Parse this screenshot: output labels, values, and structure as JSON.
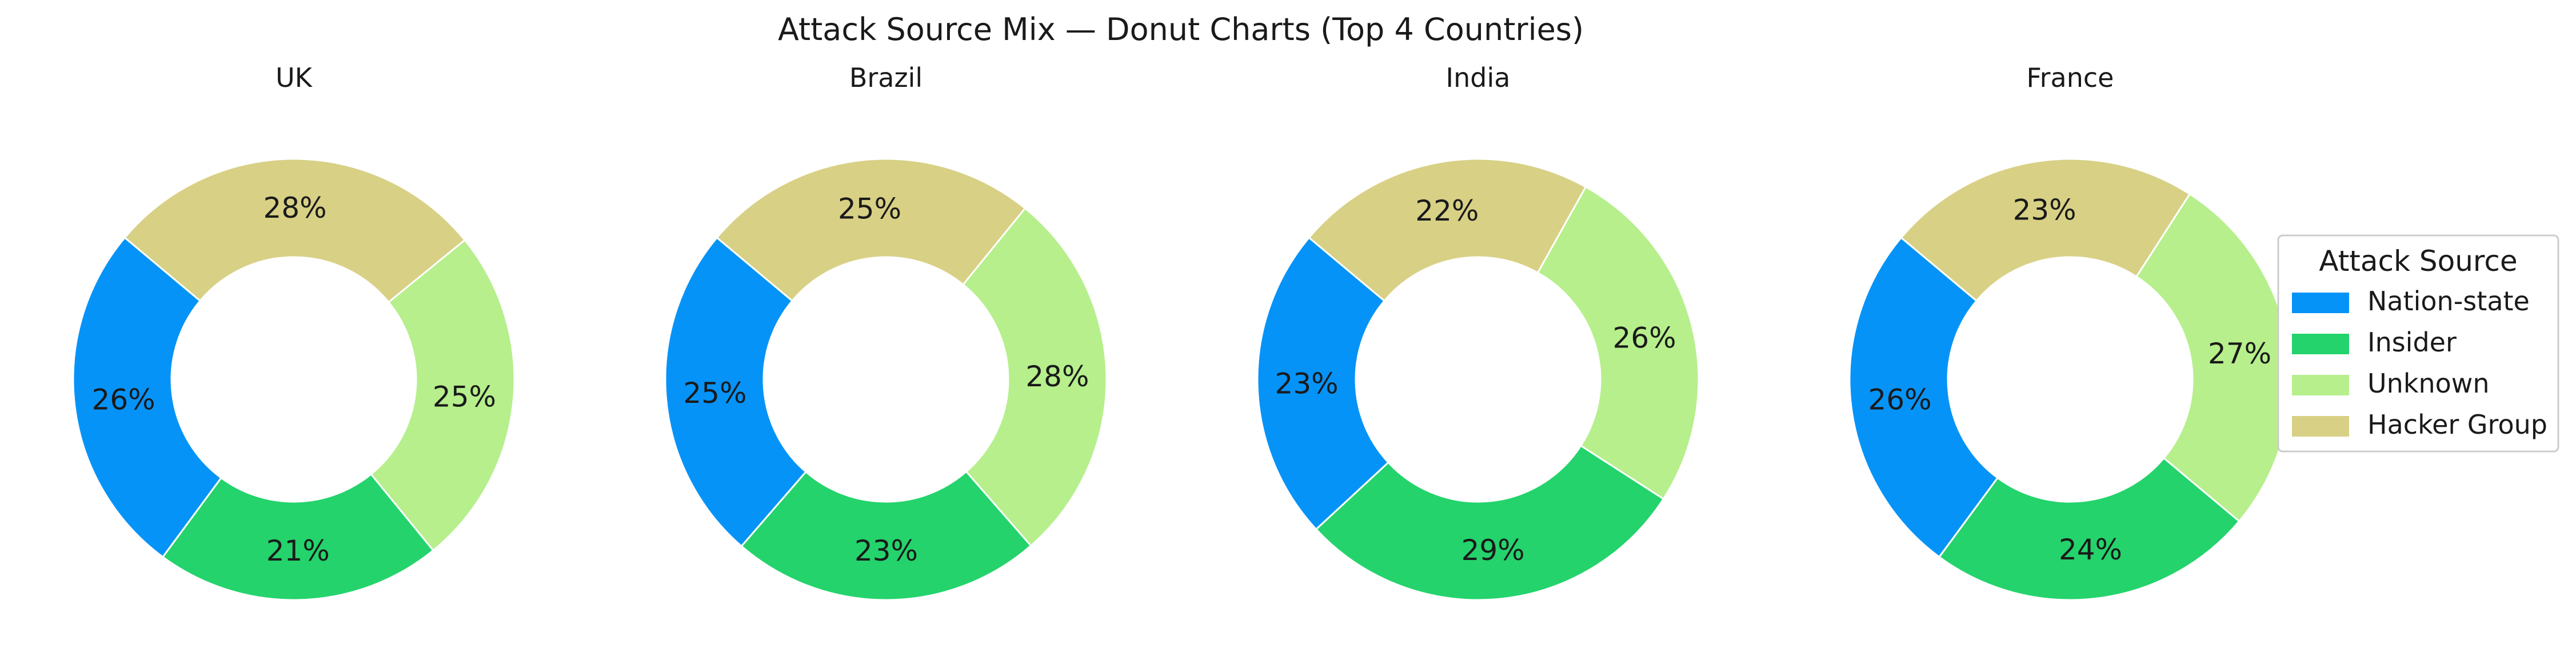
{
  "chart_data": {
    "type": "pie",
    "title": "Attack Source Mix — Donut Charts (Top 4 Countries)",
    "categories": [
      "Nation-state",
      "Insider",
      "Unknown",
      "Hacker Group"
    ],
    "colors": [
      "#0693f7",
      "#24d36c",
      "#b6ef8c",
      "#d8d085"
    ],
    "legend": {
      "title": "Attack Source",
      "placement": "right"
    },
    "charts": [
      {
        "title": "UK",
        "values": [
          26,
          21,
          25,
          28
        ]
      },
      {
        "title": "Brazil",
        "values": [
          25,
          23,
          28,
          25
        ]
      },
      {
        "title": "India",
        "values": [
          23,
          29,
          26,
          22
        ]
      },
      {
        "title": "France",
        "values": [
          26,
          24,
          27,
          23
        ]
      }
    ]
  }
}
